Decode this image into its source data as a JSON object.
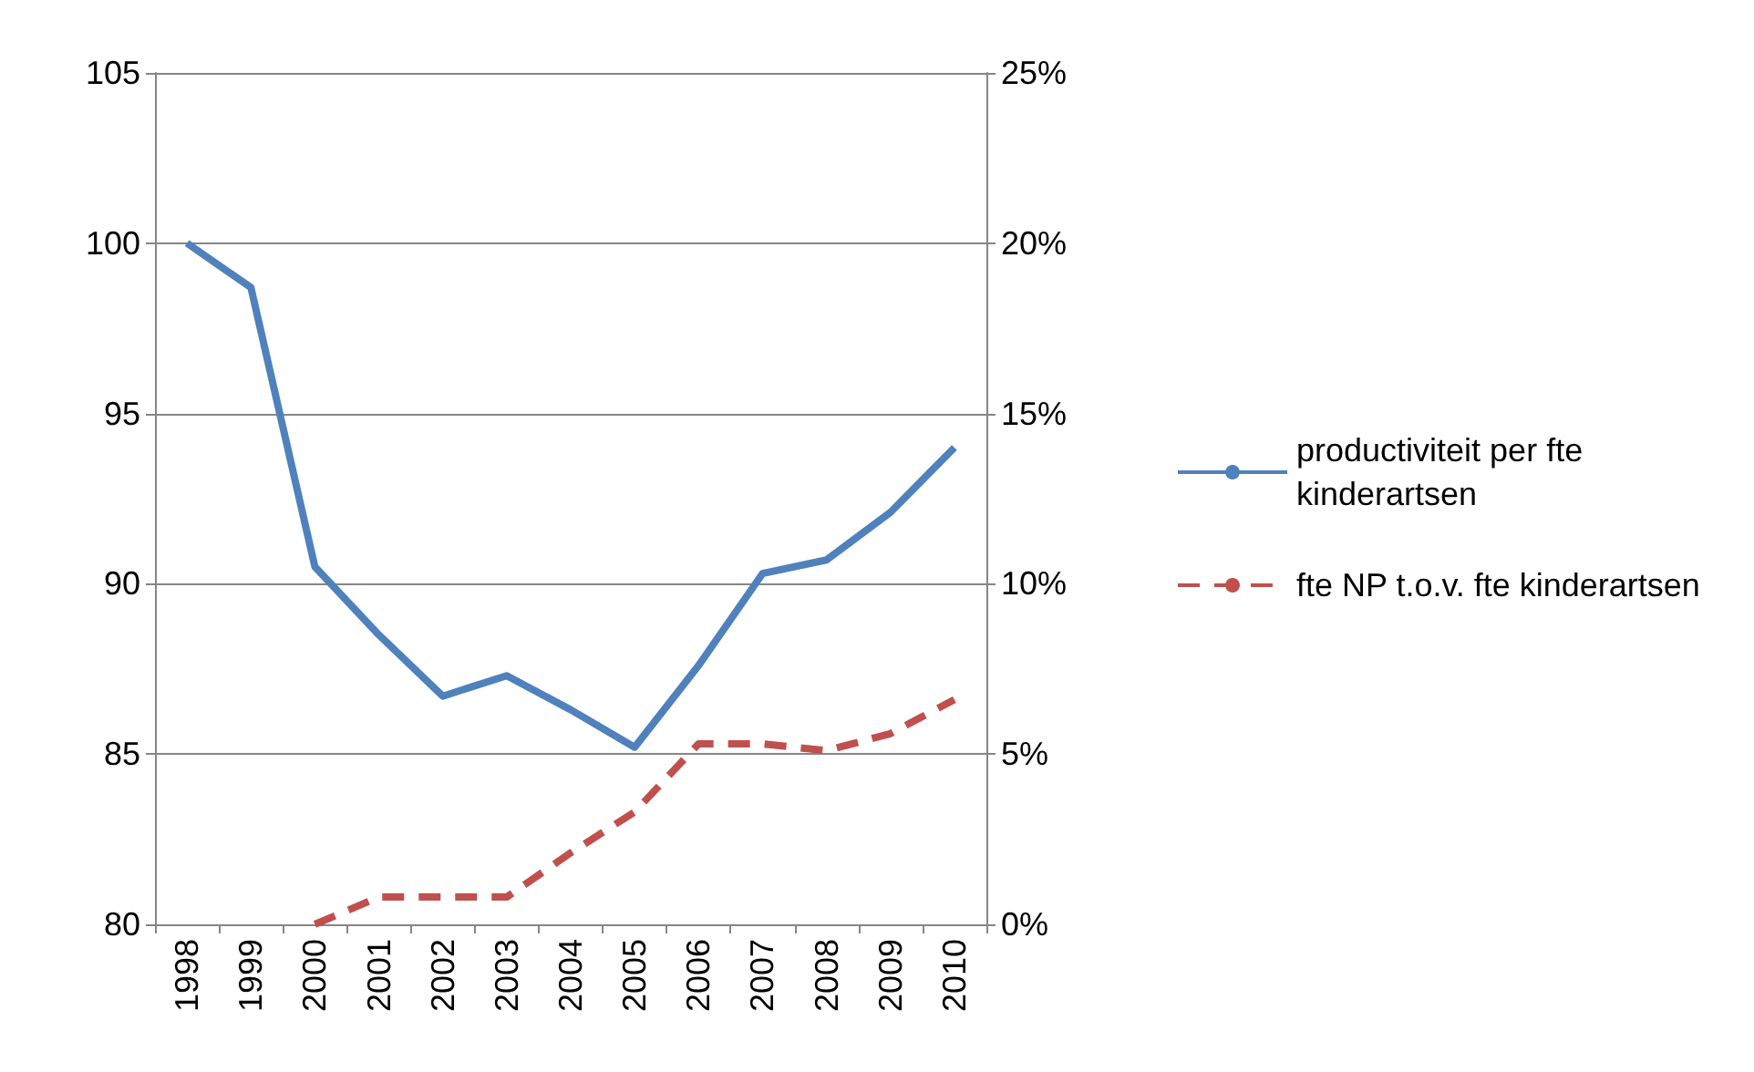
{
  "chart_data": {
    "type": "line",
    "categories": [
      "1998",
      "1999",
      "2000",
      "2001",
      "2002",
      "2003",
      "2004",
      "2005",
      "2006",
      "2007",
      "2008",
      "2009",
      "2010"
    ],
    "series": [
      {
        "name": "productiviteit per fte kinderartsen",
        "color": "#4f81bd",
        "line_style": "solid",
        "values": [
          100,
          98.7,
          90.5,
          88.5,
          86.7,
          87.3,
          86.3,
          85.2,
          87.6,
          90.3,
          90.7,
          92.1,
          94.0
        ]
      },
      {
        "name": "fte NP t.o.v. fte kinderartsen",
        "color": "#c0504d",
        "line_style": "dashed",
        "axis": "y2",
        "values": [
          null,
          null,
          0,
          0.8,
          0.8,
          0.8,
          2.1,
          3.3,
          5.3,
          5.3,
          5.1,
          5.6,
          6.6
        ]
      }
    ],
    "ylim": [
      80,
      105
    ],
    "yticks": [
      80,
      85,
      90,
      95,
      100,
      105
    ],
    "y2lim": [
      0,
      25
    ],
    "y2ticks": [
      {
        "value": 0,
        "label": "0%"
      },
      {
        "value": 5,
        "label": "5%"
      },
      {
        "value": 10,
        "label": "10%"
      },
      {
        "value": 15,
        "label": "15%"
      },
      {
        "value": 20,
        "label": "20%"
      },
      {
        "value": 25,
        "label": "25%"
      }
    ],
    "grid": "y",
    "legend": "right",
    "marker": "none"
  }
}
